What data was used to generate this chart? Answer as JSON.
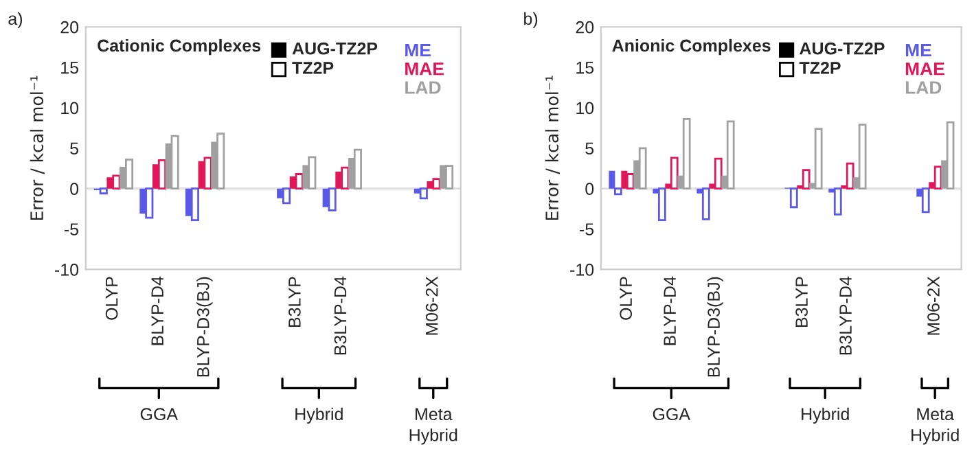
{
  "chart_data": [
    {
      "type": "bar",
      "title": "Cationic Complexes",
      "ylabel": "Error / kcal mol⁻¹",
      "categories": [
        "OLYP",
        "BLYP-D4",
        "BLYP-D3(BJ)",
        null,
        "B3LYP",
        "B3LYP-D4",
        null,
        "M06-2X"
      ],
      "series": [
        {
          "name": "ME",
          "color": "#5a5ae6",
          "values": [
            -0.2,
            -3.1,
            -3.4,
            null,
            -1.2,
            -2.3,
            null,
            -0.6
          ]
        },
        {
          "color": "#5a5ae6",
          "values": [
            -0.6,
            -3.6,
            -3.9,
            null,
            -1.8,
            -2.7,
            null,
            -1.2
          ]
        },
        {
          "name": "MAE",
          "color": "#e0185a",
          "values": [
            1.4,
            3.0,
            3.4,
            null,
            1.5,
            2.1,
            null,
            0.9
          ]
        },
        {
          "color": "#e0185a",
          "values": [
            1.6,
            3.5,
            3.8,
            null,
            1.8,
            2.6,
            null,
            1.2
          ]
        },
        {
          "name": "LAD",
          "color": "#a0a0a0",
          "values": [
            2.7,
            5.6,
            5.8,
            null,
            2.9,
            3.8,
            null,
            2.9
          ]
        },
        {
          "color": "#a0a0a0",
          "values": [
            3.6,
            6.5,
            6.8,
            null,
            3.9,
            4.8,
            null,
            2.8
          ]
        }
      ],
      "ylim": [
        -10,
        20
      ],
      "yticks": [
        -10,
        -5,
        0,
        5,
        10,
        15,
        20
      ],
      "legend": "top right",
      "annotations": [
        "a)",
        "AUG-TZ2P",
        "TZ2P",
        "GGA",
        "Hybrid",
        "Meta\nHybrid"
      ]
    },
    {
      "type": "bar",
      "title": "Anionic Complexes",
      "ylabel": "Error / kcal mol⁻¹",
      "categories": [
        "OLYP",
        "BLYP-D4",
        "BLYP-D3(BJ)",
        null,
        "B3LYP",
        "B3LYP-D4",
        null,
        "M06-2X"
      ],
      "series": [
        {
          "name": "ME",
          "color": "#5a5ae6",
          "values": [
            2.2,
            -0.6,
            -0.6,
            null,
            0.1,
            -0.5,
            null,
            -1.0
          ]
        },
        {
          "color": "#5a5ae6",
          "values": [
            -0.7,
            -3.9,
            -3.8,
            null,
            -2.3,
            -3.2,
            null,
            -2.9
          ]
        },
        {
          "name": "MAE",
          "color": "#e0185a",
          "values": [
            2.2,
            0.6,
            0.6,
            null,
            0.4,
            0.4,
            null,
            0.8
          ]
        },
        {
          "color": "#e0185a",
          "values": [
            1.8,
            3.8,
            3.7,
            null,
            2.3,
            3.1,
            null,
            2.7
          ]
        },
        {
          "name": "LAD",
          "color": "#a0a0a0",
          "values": [
            3.5,
            1.6,
            1.6,
            null,
            0.7,
            1.4,
            null,
            3.5
          ]
        },
        {
          "color": "#a0a0a0",
          "values": [
            5.0,
            8.6,
            8.3,
            null,
            7.4,
            7.9,
            null,
            8.2
          ]
        }
      ],
      "ylim": [
        -10,
        20
      ],
      "yticks": [
        -10,
        -5,
        0,
        5,
        10,
        15,
        20
      ],
      "legend": "top right",
      "annotations": [
        "b)",
        "AUG-TZ2P",
        "TZ2P",
        "GGA",
        "Hybrid",
        "Meta\nHybrid"
      ]
    }
  ]
}
